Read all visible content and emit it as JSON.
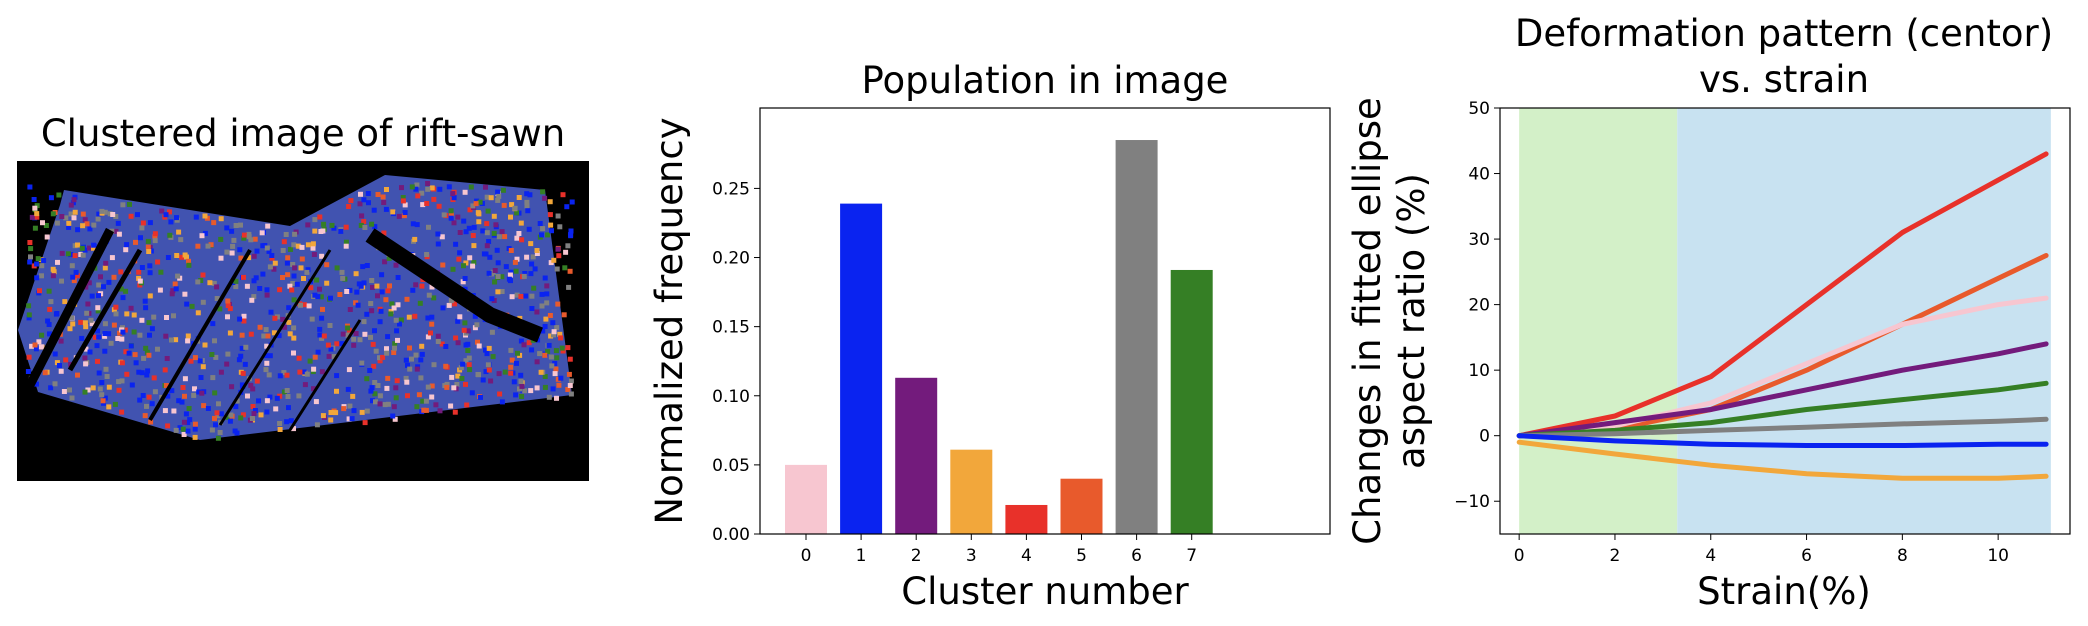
{
  "panel1": {
    "title": "Clustered image of rift-sawn"
  },
  "chart_data": [
    {
      "type": "bar",
      "title": "Population in image",
      "xlabel": "Cluster number",
      "ylabel": "Normalized frequency",
      "categories": [
        "0",
        "1",
        "2",
        "3",
        "4",
        "5",
        "6",
        "7"
      ],
      "values": [
        0.05,
        0.239,
        0.113,
        0.061,
        0.021,
        0.04,
        0.285,
        0.191
      ],
      "colors": [
        "#f7c6d0",
        "#0a23f0",
        "#731b7c",
        "#f2a73b",
        "#e8312a",
        "#e85a2c",
        "#808080",
        "#357f25"
      ],
      "ylim": [
        0,
        0.3
      ],
      "yticks": [
        "0.00",
        "0.05",
        "0.10",
        "0.15",
        "0.20",
        "0.25"
      ],
      "grid": false
    },
    {
      "type": "line",
      "title": "Deformation pattern (centor)",
      "title2": "vs. strain",
      "xlabel": "Strain(%)",
      "ylabel": "Changes in fitted ellipse",
      "ylabel2": "aspect ratio (%)",
      "xlim": [
        -0.4,
        11.5
      ],
      "ylim": [
        -15,
        50
      ],
      "xticks": [
        "0",
        "2",
        "4",
        "6",
        "8",
        "10"
      ],
      "yticks": [
        "−10",
        "0",
        "10",
        "20",
        "30",
        "40",
        "50"
      ],
      "regions": [
        {
          "x0": 0,
          "x1": 3.3,
          "color": "#d3f0c8"
        },
        {
          "x0": 3.3,
          "x1": 11.1,
          "color": "#c8e2f1"
        }
      ],
      "series": [
        {
          "color": "#e8312a",
          "x": [
            0,
            2,
            4,
            6,
            8,
            10,
            11
          ],
          "y": [
            0,
            3,
            9,
            20,
            31,
            39,
            43
          ]
        },
        {
          "color": "#e85a2c",
          "x": [
            0,
            2,
            4,
            6,
            8,
            10,
            11
          ],
          "y": [
            0,
            1,
            4,
            10,
            17,
            24,
            27.5
          ]
        },
        {
          "color": "#f7c6d0",
          "x": [
            0,
            2,
            4,
            6,
            8,
            10,
            11
          ],
          "y": [
            0,
            1.5,
            5,
            11,
            17,
            20,
            21
          ]
        },
        {
          "color": "#731b7c",
          "x": [
            0,
            2,
            4,
            6,
            8,
            10,
            11
          ],
          "y": [
            0,
            2,
            4,
            7,
            10,
            12.5,
            14
          ]
        },
        {
          "color": "#357f25",
          "x": [
            0,
            2,
            4,
            6,
            8,
            10,
            11
          ],
          "y": [
            0,
            0.8,
            2,
            4,
            5.5,
            7,
            8
          ]
        },
        {
          "color": "#808080",
          "x": [
            0,
            2,
            4,
            6,
            8,
            10,
            11
          ],
          "y": [
            0,
            0.3,
            0.8,
            1.3,
            1.8,
            2.2,
            2.5
          ]
        },
        {
          "color": "#0a23f0",
          "x": [
            0,
            2,
            4,
            6,
            8,
            10,
            11
          ],
          "y": [
            0,
            -0.8,
            -1.3,
            -1.5,
            -1.5,
            -1.3,
            -1.3
          ]
        },
        {
          "color": "#f2a73b",
          "x": [
            0,
            2,
            4,
            6,
            8,
            10,
            11
          ],
          "y": [
            -1,
            -2.8,
            -4.5,
            -5.8,
            -6.5,
            -6.5,
            -6.2
          ]
        }
      ],
      "grid": false
    }
  ]
}
